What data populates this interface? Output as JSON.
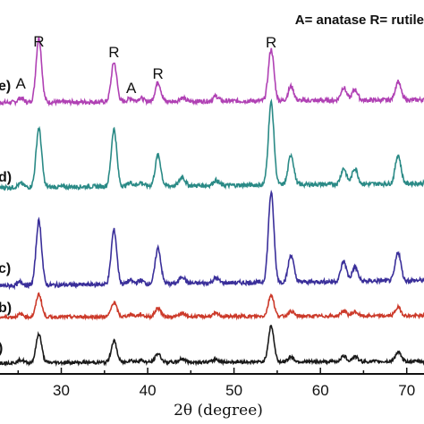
{
  "chart_data": {
    "type": "line",
    "title": "",
    "xlabel": "2θ (degree)",
    "ylabel": "",
    "xlim": [
      20,
      72
    ],
    "xticks": [
      30,
      40,
      50,
      60,
      70
    ],
    "legend_note": "A= anatase R= rutile",
    "x": [
      20,
      25.3,
      27.4,
      36.1,
      38,
      39.2,
      41.2,
      44,
      47.9,
      54.3,
      56.6,
      62.7,
      64,
      69,
      72
    ],
    "series": [
      {
        "name": "e)",
        "color": "#b041b4",
        "baseline": 1.0,
        "values": [
          0.04,
          0.06,
          0.9,
          0.55,
          0.05,
          0.05,
          0.27,
          0.05,
          0.07,
          0.72,
          0.2,
          0.18,
          0.15,
          0.26,
          0.08
        ]
      },
      {
        "name": "d)",
        "color": "#2a8a86",
        "baseline": 1.0,
        "values": [
          0.04,
          0.05,
          0.82,
          0.8,
          0.05,
          0.05,
          0.43,
          0.12,
          0.07,
          1.15,
          0.42,
          0.22,
          0.22,
          0.4,
          0.1
        ]
      },
      {
        "name": "c)",
        "color": "#3a2f9a",
        "baseline": 1.0,
        "values": [
          0.04,
          0.05,
          0.9,
          0.76,
          0.05,
          0.05,
          0.5,
          0.1,
          0.07,
          1.25,
          0.38,
          0.28,
          0.2,
          0.4,
          0.12
        ]
      },
      {
        "name": "b)",
        "color": "#cc3a2a",
        "baseline": 1.0,
        "values": [
          0.03,
          0.04,
          0.32,
          0.2,
          0.03,
          0.03,
          0.12,
          0.04,
          0.04,
          0.3,
          0.07,
          0.07,
          0.06,
          0.12,
          0.05
        ]
      },
      {
        "name": ")",
        "color": "#1a1a1a",
        "baseline": 1.0,
        "values": [
          0.03,
          0.04,
          0.4,
          0.3,
          0.03,
          0.03,
          0.12,
          0.05,
          0.04,
          0.5,
          0.07,
          0.08,
          0.07,
          0.13,
          0.05
        ]
      }
    ],
    "peak_labels": [
      {
        "text": "A",
        "x": 25.3
      },
      {
        "text": "R",
        "x": 27.4
      },
      {
        "text": "R",
        "x": 36.1
      },
      {
        "text": "A",
        "x": 38.1
      },
      {
        "text": "R",
        "x": 41.2
      },
      {
        "text": "R",
        "x": 54.3
      }
    ],
    "grid": false
  }
}
